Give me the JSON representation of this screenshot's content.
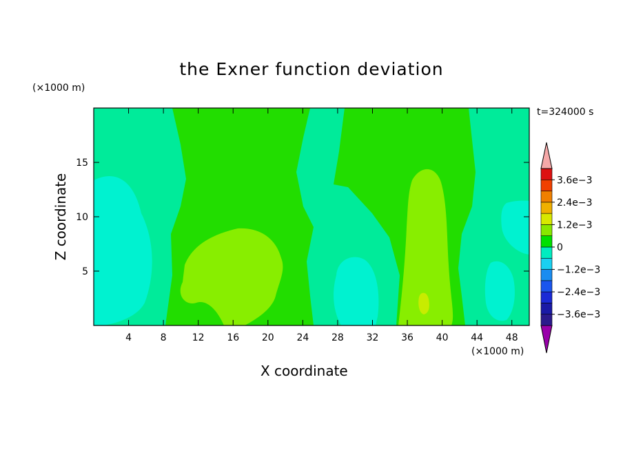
{
  "chart_data": {
    "type": "heatmap",
    "title": "the Exner function deviation",
    "xlabel": "X coordinate",
    "ylabel": "Z coordinate",
    "x_unit": "(×1000 m)",
    "z_unit": "(×1000 m)",
    "time_label": "t=324000 s",
    "xlim": [
      0,
      50
    ],
    "ylim": [
      0,
      20
    ],
    "x_ticks": [
      4,
      8,
      12,
      16,
      20,
      24,
      28,
      32,
      36,
      40,
      44,
      48
    ],
    "y_ticks": [
      5,
      10,
      15
    ],
    "colorbar": {
      "labels": [
        "3.6e−3",
        "2.4e−3",
        "1.2e−3",
        "0",
        "−1.2e−3",
        "−2.4e−3",
        "−3.6e−3"
      ],
      "levels": [
        -0.0042,
        -0.0036,
        -0.003,
        -0.0024,
        -0.0018,
        -0.0012,
        -0.0006,
        0,
        0.0006,
        0.0012,
        0.0018,
        0.0024,
        0.003,
        0.0036,
        0.0042
      ],
      "colors": [
        "#9900aa",
        "#2b1a8c",
        "#1a1aa6",
        "#1a2ad6",
        "#1a55ee",
        "#1a8cf0",
        "#1ad0f0",
        "#00ecc0",
        "#00e000",
        "#88e800",
        "#d8e800",
        "#f0b000",
        "#f08000",
        "#f04000",
        "#dd1111",
        "#f5a8a8"
      ]
    },
    "regions": [
      {
        "value": -0.0003,
        "color": "#00eb9a",
        "description": "background band near 0 to -6e-4"
      },
      {
        "value": 0.0002,
        "color": "#22dd00",
        "description": "slightly positive band"
      },
      {
        "value": 0.0008,
        "color": "#88ee00",
        "description": "positive lobes near x=16 and x=38"
      },
      {
        "value": -0.0008,
        "color": "#00f2d0",
        "description": "negative lobes"
      }
    ]
  }
}
